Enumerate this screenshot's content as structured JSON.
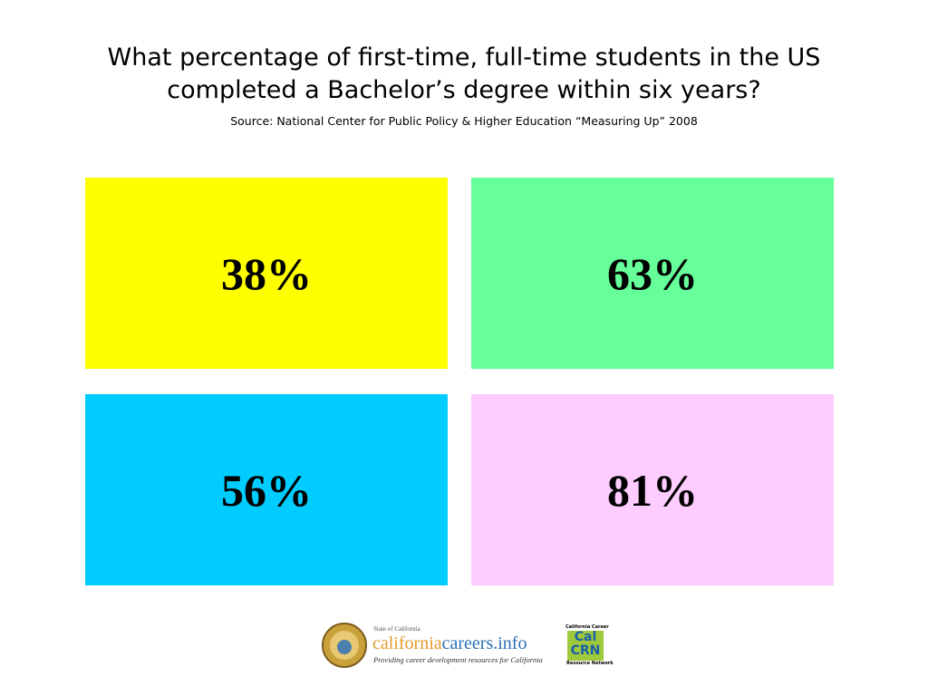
{
  "header": {
    "title_lines": [
      "What percentage of first-time, full-time students in the US",
      "completed a Bachelor’s degree within six years?"
    ],
    "source": "Source: National Center for Public Policy & Higher Education “Measuring Up” 2008"
  },
  "options": [
    "38%",
    "63%",
    "56%",
    "81%"
  ],
  "footer": {
    "state": "State of California",
    "brand_part1": "california",
    "brand_part2": "careers",
    "brand_part3": ".info",
    "tagline": "Providing career development resources for California",
    "crn_top": "California Career",
    "crn_cal": "Cal",
    "crn_crn": "CRN",
    "crn_bottom": "Resource Network"
  }
}
